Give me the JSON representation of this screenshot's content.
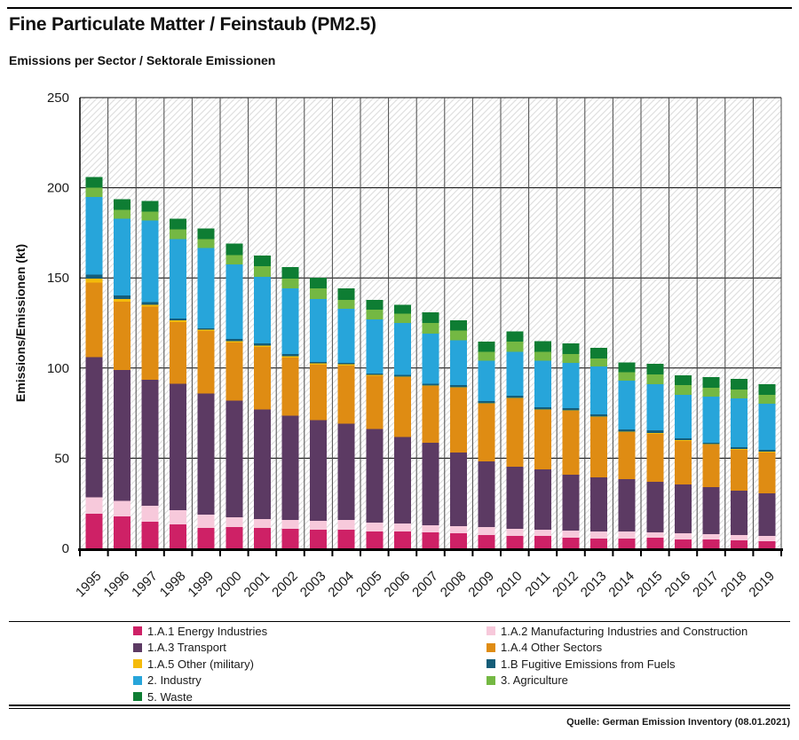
{
  "page": {
    "title": "Fine Particulate Matter / Feinstaub (PM2.5)",
    "subtitle": "Emissions per Sector / Sektorale Emissionen",
    "source": "Quelle: German Emission Inventory (08.01.2021)"
  },
  "chart_data": {
    "type": "bar",
    "stacked": true,
    "title": "Fine Particulate Matter / Feinstaub (PM2.5)",
    "subtitle": "Emissions per Sector / Sektorale Emissionen",
    "ylabel": "Emissions/Emissionen (kt)",
    "xlabel": "",
    "ylim": [
      0,
      250
    ],
    "yticks": [
      0,
      50,
      100,
      150,
      200,
      250
    ],
    "grid": true,
    "legend_position": "bottom",
    "background_hatch": true,
    "hatch_color": "#dcdcdc",
    "separator_color": "#4a4a4a",
    "axis_color": "#000000",
    "categories": [
      "1995",
      "1996",
      "1997",
      "1998",
      "1999",
      "2000",
      "2001",
      "2002",
      "2003",
      "2004",
      "2005",
      "2006",
      "2007",
      "2008",
      "2009",
      "2010",
      "2011",
      "2012",
      "2013",
      "2014",
      "2015",
      "2016",
      "2017",
      "2018",
      "2019"
    ],
    "series": [
      {
        "name": "1.A.1 Energy Industries",
        "color": "#ce2166",
        "values": [
          19.1,
          17.6,
          14.7,
          13.2,
          11.3,
          11.8,
          11.3,
          10.8,
          10.3,
          10.3,
          9.3,
          9.3,
          8.9,
          8.4,
          7.4,
          6.9,
          6.9,
          5.9,
          5.4,
          5.4,
          5.9,
          4.9,
          4.9,
          4.4,
          3.9
        ]
      },
      {
        "name": "1.A.2 Manufacturing Industries and Construction",
        "color": "#f7c9db",
        "values": [
          9.3,
          8.8,
          8.8,
          7.9,
          7.3,
          5.4,
          4.9,
          4.9,
          4.9,
          5.4,
          5.0,
          4.5,
          3.9,
          3.9,
          4.4,
          3.9,
          3.4,
          3.9,
          3.9,
          3.9,
          3.0,
          3.5,
          3.0,
          3.0,
          3.0
        ]
      },
      {
        "name": "1.A.3 Transport",
        "color": "#5c3a63",
        "values": [
          77.6,
          72.6,
          70.1,
          70.1,
          67.2,
          64.7,
          60.8,
          57.8,
          55.9,
          53.4,
          51.9,
          48.0,
          45.7,
          40.8,
          36.4,
          34.4,
          33.5,
          31.0,
          30.0,
          29.1,
          28.0,
          27.0,
          26.0,
          24.6,
          23.6
        ]
      },
      {
        "name": "1.A.4 Other Sectors",
        "color": "#df8c13",
        "values": [
          41.5,
          37.9,
          40.4,
          34.3,
          34.7,
          32.3,
          34.8,
          32.4,
          30.8,
          32.4,
          29.4,
          33.1,
          31.5,
          35.9,
          31.9,
          37.9,
          32.9,
          35.4,
          33.5,
          26.0,
          26.5,
          24.1,
          23.6,
          22.6,
          22.6
        ]
      },
      {
        "name": "1.A.5 Other (military)",
        "color": "#f5bb0a",
        "values": [
          2.0,
          1.5,
          1.2,
          1.0,
          0.8,
          0.8,
          0.7,
          0.7,
          0.6,
          0.5,
          0.5,
          0.4,
          0.4,
          0.4,
          0.4,
          0.4,
          0.4,
          0.4,
          0.4,
          0.4,
          0.5,
          0.5,
          0.4,
          0.5,
          0.5
        ]
      },
      {
        "name": "1.B Fugitive Emissions from Fuels",
        "color": "#155d78",
        "values": [
          2.4,
          1.8,
          1.4,
          1.0,
          0.8,
          1.2,
          1.2,
          1.2,
          0.9,
          0.9,
          0.9,
          1.0,
          1.0,
          1.1,
          1.1,
          1.1,
          1.1,
          1.1,
          1.0,
          1.1,
          1.5,
          1.0,
          0.6,
          1.0,
          1.0
        ]
      },
      {
        "name": "2. Industry",
        "color": "#27a5da",
        "values": [
          43.1,
          42.6,
          45.2,
          44.0,
          44.5,
          41.2,
          36.8,
          36.3,
          34.8,
          29.9,
          29.9,
          28.8,
          27.6,
          25.0,
          22.6,
          24.5,
          26.0,
          25.1,
          26.6,
          27.0,
          25.6,
          24.1,
          25.6,
          27.0,
          25.5
        ]
      },
      {
        "name": "3. Agriculture",
        "color": "#74b843",
        "values": [
          5.0,
          4.9,
          4.9,
          5.4,
          4.9,
          5.3,
          5.9,
          5.4,
          5.9,
          4.9,
          5.4,
          5.0,
          5.9,
          5.4,
          4.9,
          5.5,
          4.9,
          4.9,
          4.4,
          4.9,
          5.4,
          5.4,
          4.9,
          4.9,
          5.0
        ]
      },
      {
        "name": "5. Waste",
        "color": "#0e7d33",
        "values": [
          6.0,
          5.9,
          5.9,
          5.9,
          5.9,
          6.4,
          5.9,
          6.4,
          5.9,
          6.4,
          5.4,
          5.0,
          5.9,
          5.5,
          5.5,
          5.8,
          5.9,
          5.9,
          5.9,
          5.4,
          5.9,
          5.4,
          5.9,
          5.9,
          5.9
        ]
      }
    ]
  }
}
